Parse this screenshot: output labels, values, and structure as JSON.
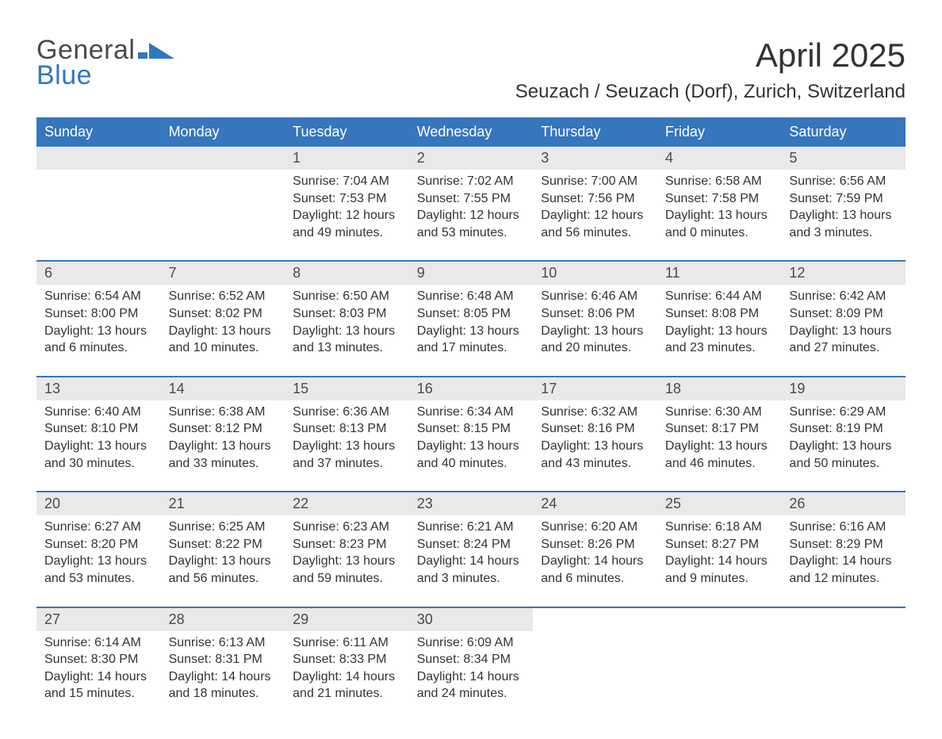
{
  "colors": {
    "accent": "#3576bd",
    "header_bg": "#e9e9e9",
    "text": "#333333",
    "logo_gray": "#4a4a4a",
    "logo_blue": "#2f78bf",
    "background": "#ffffff"
  },
  "typography": {
    "title_fontsize_pt": 32,
    "subtitle_fontsize_pt": 18,
    "dow_fontsize_pt": 14,
    "body_fontsize_pt": 12,
    "font_family": "Arial"
  },
  "logo": {
    "line1": "General",
    "line2": "Blue"
  },
  "title": "April 2025",
  "subtitle": "Seuzach / Seuzach (Dorf), Zurich, Switzerland",
  "day_of_week_labels": [
    "Sunday",
    "Monday",
    "Tuesday",
    "Wednesday",
    "Thursday",
    "Friday",
    "Saturday"
  ],
  "calendar": {
    "leading_blanks": 2,
    "days": [
      {
        "n": "1",
        "sunrise": "7:04 AM",
        "sunset": "7:53 PM",
        "daylight": "12 hours and 49 minutes."
      },
      {
        "n": "2",
        "sunrise": "7:02 AM",
        "sunset": "7:55 PM",
        "daylight": "12 hours and 53 minutes."
      },
      {
        "n": "3",
        "sunrise": "7:00 AM",
        "sunset": "7:56 PM",
        "daylight": "12 hours and 56 minutes."
      },
      {
        "n": "4",
        "sunrise": "6:58 AM",
        "sunset": "7:58 PM",
        "daylight": "13 hours and 0 minutes."
      },
      {
        "n": "5",
        "sunrise": "6:56 AM",
        "sunset": "7:59 PM",
        "daylight": "13 hours and 3 minutes."
      },
      {
        "n": "6",
        "sunrise": "6:54 AM",
        "sunset": "8:00 PM",
        "daylight": "13 hours and 6 minutes."
      },
      {
        "n": "7",
        "sunrise": "6:52 AM",
        "sunset": "8:02 PM",
        "daylight": "13 hours and 10 minutes."
      },
      {
        "n": "8",
        "sunrise": "6:50 AM",
        "sunset": "8:03 PM",
        "daylight": "13 hours and 13 minutes."
      },
      {
        "n": "9",
        "sunrise": "6:48 AM",
        "sunset": "8:05 PM",
        "daylight": "13 hours and 17 minutes."
      },
      {
        "n": "10",
        "sunrise": "6:46 AM",
        "sunset": "8:06 PM",
        "daylight": "13 hours and 20 minutes."
      },
      {
        "n": "11",
        "sunrise": "6:44 AM",
        "sunset": "8:08 PM",
        "daylight": "13 hours and 23 minutes."
      },
      {
        "n": "12",
        "sunrise": "6:42 AM",
        "sunset": "8:09 PM",
        "daylight": "13 hours and 27 minutes."
      },
      {
        "n": "13",
        "sunrise": "6:40 AM",
        "sunset": "8:10 PM",
        "daylight": "13 hours and 30 minutes."
      },
      {
        "n": "14",
        "sunrise": "6:38 AM",
        "sunset": "8:12 PM",
        "daylight": "13 hours and 33 minutes."
      },
      {
        "n": "15",
        "sunrise": "6:36 AM",
        "sunset": "8:13 PM",
        "daylight": "13 hours and 37 minutes."
      },
      {
        "n": "16",
        "sunrise": "6:34 AM",
        "sunset": "8:15 PM",
        "daylight": "13 hours and 40 minutes."
      },
      {
        "n": "17",
        "sunrise": "6:32 AM",
        "sunset": "8:16 PM",
        "daylight": "13 hours and 43 minutes."
      },
      {
        "n": "18",
        "sunrise": "6:30 AM",
        "sunset": "8:17 PM",
        "daylight": "13 hours and 46 minutes."
      },
      {
        "n": "19",
        "sunrise": "6:29 AM",
        "sunset": "8:19 PM",
        "daylight": "13 hours and 50 minutes."
      },
      {
        "n": "20",
        "sunrise": "6:27 AM",
        "sunset": "8:20 PM",
        "daylight": "13 hours and 53 minutes."
      },
      {
        "n": "21",
        "sunrise": "6:25 AM",
        "sunset": "8:22 PM",
        "daylight": "13 hours and 56 minutes."
      },
      {
        "n": "22",
        "sunrise": "6:23 AM",
        "sunset": "8:23 PM",
        "daylight": "13 hours and 59 minutes."
      },
      {
        "n": "23",
        "sunrise": "6:21 AM",
        "sunset": "8:24 PM",
        "daylight": "14 hours and 3 minutes."
      },
      {
        "n": "24",
        "sunrise": "6:20 AM",
        "sunset": "8:26 PM",
        "daylight": "14 hours and 6 minutes."
      },
      {
        "n": "25",
        "sunrise": "6:18 AM",
        "sunset": "8:27 PM",
        "daylight": "14 hours and 9 minutes."
      },
      {
        "n": "26",
        "sunrise": "6:16 AM",
        "sunset": "8:29 PM",
        "daylight": "14 hours and 12 minutes."
      },
      {
        "n": "27",
        "sunrise": "6:14 AM",
        "sunset": "8:30 PM",
        "daylight": "14 hours and 15 minutes."
      },
      {
        "n": "28",
        "sunrise": "6:13 AM",
        "sunset": "8:31 PM",
        "daylight": "14 hours and 18 minutes."
      },
      {
        "n": "29",
        "sunrise": "6:11 AM",
        "sunset": "8:33 PM",
        "daylight": "14 hours and 21 minutes."
      },
      {
        "n": "30",
        "sunrise": "6:09 AM",
        "sunset": "8:34 PM",
        "daylight": "14 hours and 24 minutes."
      }
    ]
  },
  "labels": {
    "sunrise": "Sunrise: ",
    "sunset": "Sunset: ",
    "daylight": "Daylight: "
  }
}
